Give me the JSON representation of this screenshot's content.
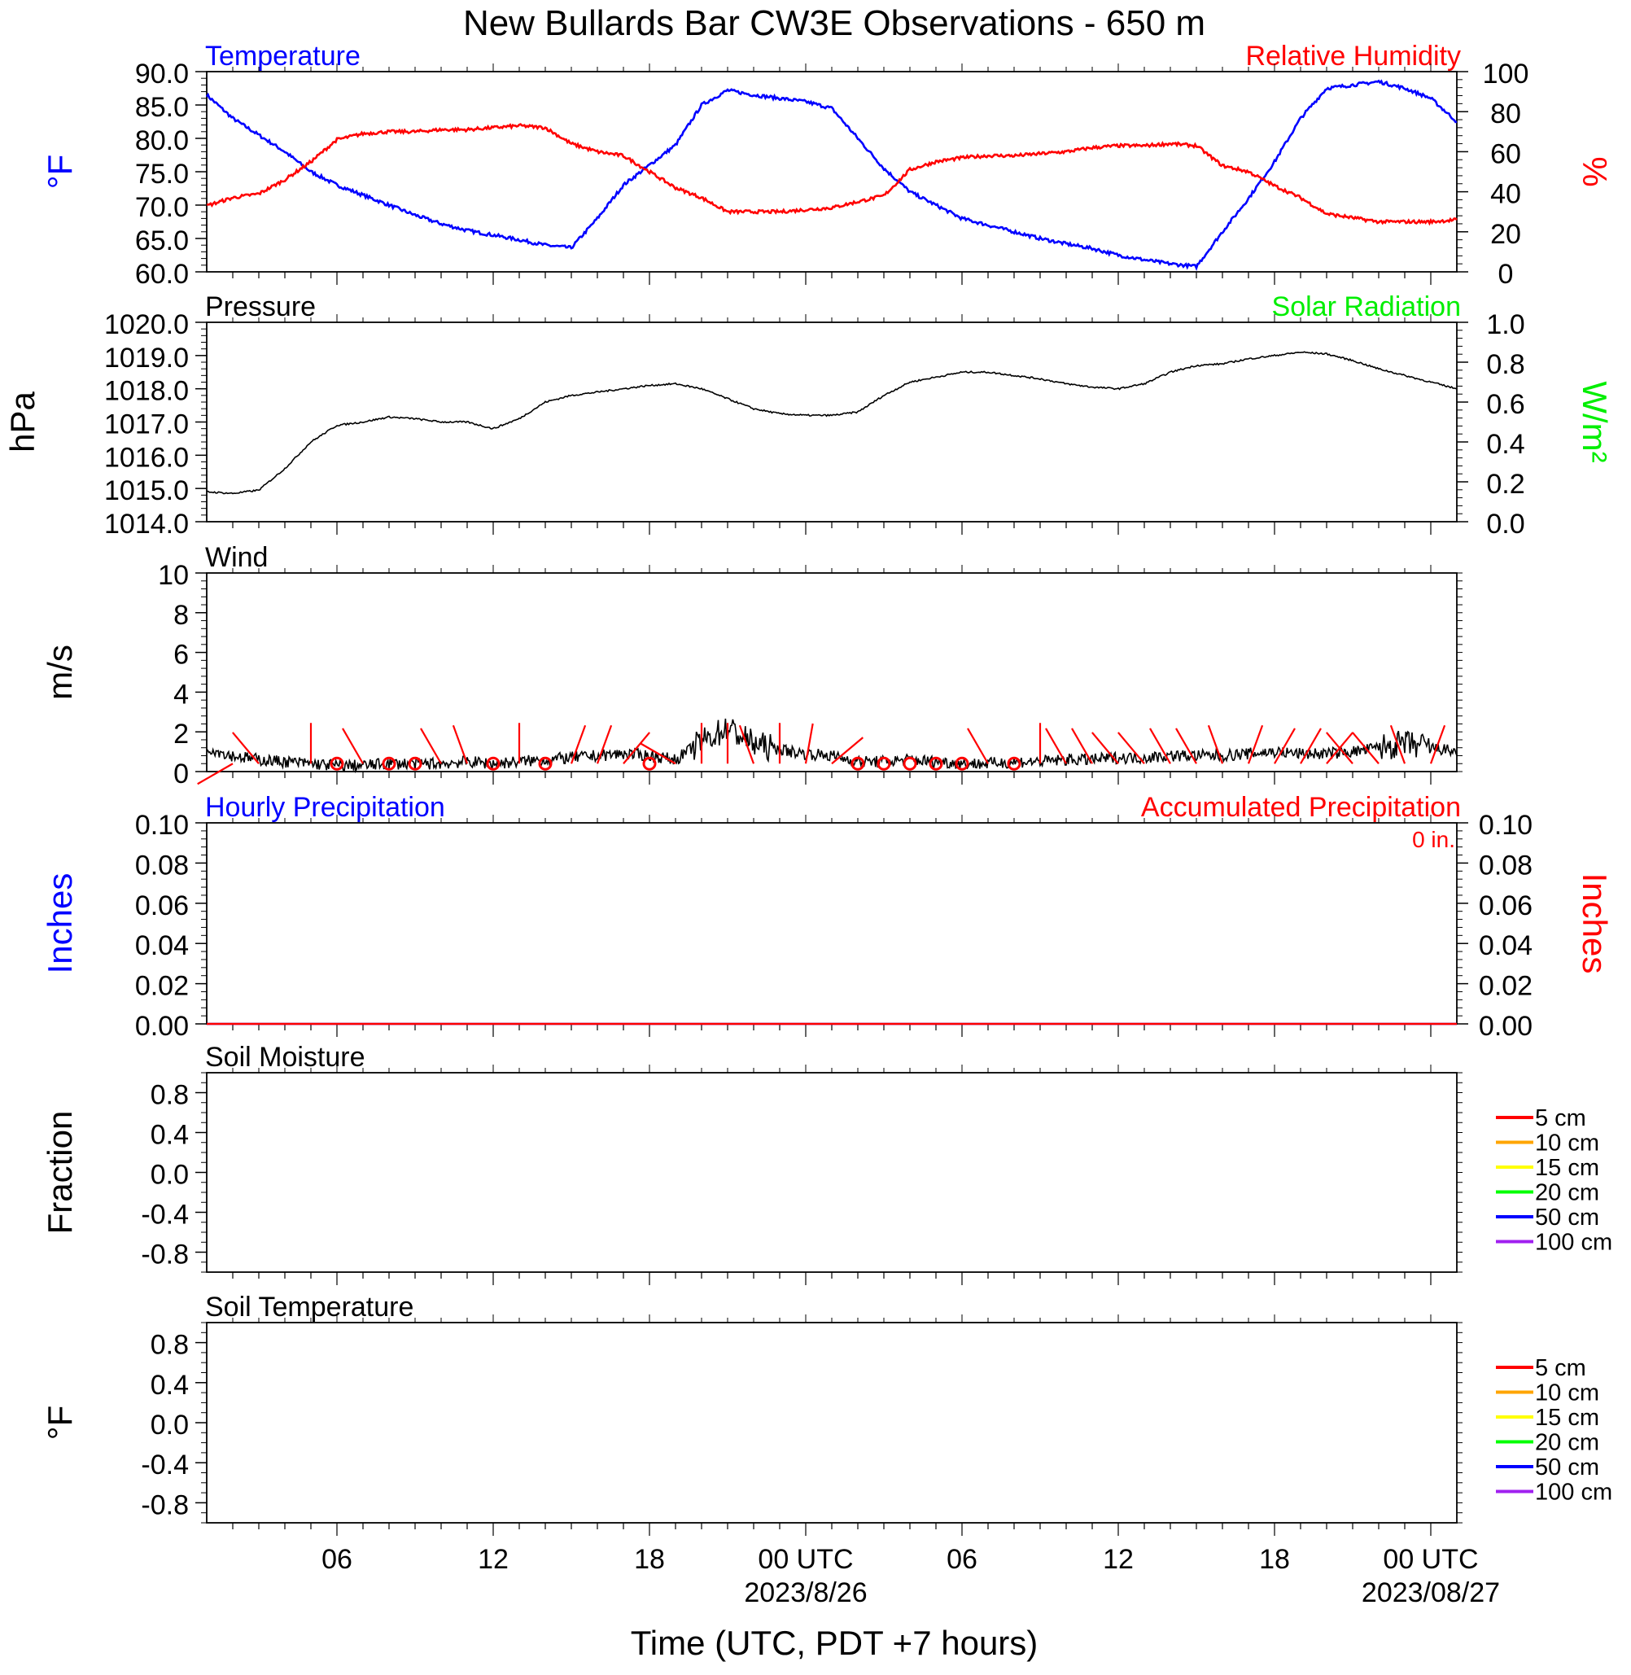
{
  "title": "New Bullards Bar CW3E Observations - 650 m",
  "xlabel": "Time (UTC, PDT +7 hours)",
  "x_ticks": [
    {
      "h": 6,
      "label": "06",
      "date": ""
    },
    {
      "h": 12,
      "label": "12",
      "date": ""
    },
    {
      "h": 18,
      "label": "18",
      "date": ""
    },
    {
      "h": 24,
      "label": "00 UTC",
      "date": "2023/8/26"
    },
    {
      "h": 30,
      "label": "06",
      "date": ""
    },
    {
      "h": 36,
      "label": "12",
      "date": ""
    },
    {
      "h": 42,
      "label": "18",
      "date": ""
    },
    {
      "h": 48,
      "label": "00 UTC",
      "date": "2023/08/27"
    }
  ],
  "x_range_hours": [
    1,
    49
  ],
  "colors": {
    "temperature": "#0000ff",
    "humidity": "#ff0000",
    "pressure": "#000000",
    "solar": "#00ee00",
    "wind": "#000000",
    "barb": "#ff0000",
    "hourly_precip": "#0000ff",
    "accum_precip": "#ff0000"
  },
  "chart_data": [
    {
      "type": "line",
      "panel": "temperature-humidity",
      "left_title": "Temperature",
      "right_title": "Relative Humidity",
      "ylabel_left": "°F",
      "ylabel_right": "%",
      "ylim_left": [
        60,
        90
      ],
      "ylim_right": [
        0,
        100
      ],
      "yticks_left": [
        "60.0",
        "65.0",
        "70.0",
        "75.0",
        "80.0",
        "85.0",
        "90.0"
      ],
      "yticks_right": [
        "0",
        "20",
        "40",
        "60",
        "80",
        "100"
      ],
      "series": [
        {
          "key": "temperature",
          "axis": "left",
          "x": [
            1,
            2,
            3,
            4,
            5,
            6,
            7,
            8,
            9,
            10,
            11,
            12,
            13,
            14,
            15,
            16,
            17,
            18,
            19,
            20,
            21,
            22,
            23,
            24,
            25,
            26,
            27,
            28,
            29,
            30,
            31,
            32,
            33,
            34,
            35,
            36,
            37,
            38,
            39,
            40,
            41,
            42,
            43,
            44,
            45,
            46,
            47,
            48,
            49
          ],
          "values": [
            86.5,
            83,
            80.5,
            78,
            75,
            73,
            71.5,
            70,
            68.5,
            67.2,
            66.2,
            65.5,
            64.8,
            64,
            63.6,
            68,
            73,
            76,
            79,
            85,
            87.2,
            86.5,
            86,
            85.5,
            84.5,
            80,
            75.5,
            72,
            70,
            68,
            67,
            66,
            65,
            64.2,
            63.5,
            62.5,
            61.8,
            61.2,
            60.8,
            66,
            71,
            76.5,
            83,
            87.5,
            88,
            88.5,
            87.5,
            86,
            82.5
          ]
        },
        {
          "key": "humidity",
          "axis": "right",
          "x": [
            1,
            2,
            3,
            4,
            5,
            6,
            7,
            8,
            9,
            10,
            11,
            12,
            13,
            14,
            15,
            16,
            17,
            18,
            19,
            20,
            21,
            22,
            23,
            24,
            25,
            26,
            27,
            28,
            29,
            30,
            31,
            32,
            33,
            34,
            35,
            36,
            37,
            38,
            39,
            40,
            41,
            42,
            43,
            44,
            45,
            46,
            47,
            48,
            49
          ],
          "values": [
            33,
            37,
            39,
            46,
            55,
            66,
            69,
            70,
            70,
            71,
            71,
            72,
            73,
            72,
            64,
            60,
            58,
            50,
            42,
            37,
            30,
            30,
            30,
            31,
            32,
            35,
            38,
            51,
            55,
            57,
            58,
            58,
            59,
            60,
            62,
            63,
            63,
            64,
            63,
            53,
            50,
            43,
            37,
            29,
            27,
            25,
            25,
            25,
            26
          ]
        }
      ]
    },
    {
      "type": "line",
      "panel": "pressure-solar",
      "left_title": "Pressure",
      "right_title": "Solar Radiation",
      "ylabel_left": "hPa",
      "ylabel_right": "W/m²",
      "ylim_left": [
        1014,
        1020
      ],
      "ylim_right": [
        0,
        1
      ],
      "yticks_left": [
        "1014.0",
        "1015.0",
        "1016.0",
        "1017.0",
        "1018.0",
        "1019.0",
        "1020.0"
      ],
      "yticks_right": [
        "0.0",
        "0.2",
        "0.4",
        "0.6",
        "0.8",
        "1.0"
      ],
      "series": [
        {
          "key": "pressure",
          "axis": "left",
          "x": [
            1,
            2,
            3,
            4,
            5,
            6,
            7,
            8,
            9,
            10,
            11,
            12,
            13,
            14,
            15,
            16,
            17,
            18,
            19,
            20,
            21,
            22,
            23,
            24,
            25,
            26,
            27,
            28,
            29,
            30,
            31,
            32,
            33,
            34,
            35,
            36,
            37,
            38,
            39,
            40,
            41,
            42,
            43,
            44,
            45,
            46,
            47,
            48,
            49
          ],
          "values": [
            1014.9,
            1014.85,
            1014.95,
            1015.6,
            1016.4,
            1016.9,
            1017.0,
            1017.15,
            1017.1,
            1017.0,
            1017.0,
            1016.8,
            1017.1,
            1017.6,
            1017.8,
            1017.9,
            1018.0,
            1018.1,
            1018.15,
            1018.0,
            1017.7,
            1017.4,
            1017.25,
            1017.2,
            1017.2,
            1017.3,
            1017.8,
            1018.2,
            1018.35,
            1018.5,
            1018.5,
            1018.4,
            1018.3,
            1018.15,
            1018.05,
            1018.0,
            1018.15,
            1018.5,
            1018.7,
            1018.75,
            1018.9,
            1019.0,
            1019.1,
            1019.05,
            1018.85,
            1018.6,
            1018.4,
            1018.2,
            1018.0
          ]
        }
      ]
    },
    {
      "type": "line",
      "panel": "wind",
      "left_title": "Wind",
      "ylabel_left": "m/s",
      "ylim_left": [
        0,
        10
      ],
      "yticks_left": [
        "0",
        "2",
        "4",
        "6",
        "8",
        "10"
      ],
      "series": [
        {
          "key": "wind_speed",
          "axis": "left",
          "x": [
            1,
            2,
            3,
            4,
            5,
            6,
            7,
            8,
            9,
            10,
            11,
            12,
            13,
            14,
            15,
            16,
            17,
            18,
            19,
            20,
            21,
            22,
            23,
            24,
            25,
            26,
            27,
            28,
            29,
            30,
            31,
            32,
            33,
            34,
            35,
            36,
            37,
            38,
            39,
            40,
            41,
            42,
            43,
            44,
            45,
            46,
            47,
            48,
            49
          ],
          "values": [
            1.2,
            0.8,
            0.6,
            0.5,
            0.4,
            0.3,
            0.3,
            0.4,
            0.4,
            0.4,
            0.5,
            0.4,
            0.5,
            0.6,
            0.7,
            0.8,
            0.9,
            0.8,
            0.6,
            1.5,
            2.2,
            1.4,
            1.1,
            0.9,
            0.8,
            0.5,
            0.5,
            0.6,
            0.5,
            0.4,
            0.4,
            0.5,
            0.5,
            0.6,
            0.6,
            0.7,
            0.7,
            0.8,
            0.8,
            0.8,
            0.9,
            1.0,
            0.9,
            0.9,
            1.0,
            1.2,
            1.4,
            1.2,
            1.0
          ]
        },
        {
          "key": "wind_barbs",
          "axis": "left",
          "x": [
            2,
            3,
            5,
            6,
            7,
            8,
            9,
            10,
            11,
            12,
            13,
            14,
            15,
            16,
            17,
            18,
            19,
            20,
            21,
            22,
            23,
            24,
            25,
            26,
            27,
            28,
            29,
            30,
            31,
            32,
            33,
            34,
            35,
            36,
            37,
            38,
            39,
            40,
            41,
            42,
            43,
            44,
            45,
            46,
            47,
            48
          ],
          "direction_deg": [
            240,
            320,
            0,
            0,
            330,
            0,
            0,
            330,
            340,
            0,
            0,
            0,
            20,
            20,
            40,
            0,
            300,
            0,
            0,
            340,
            0,
            10,
            50,
            0,
            0,
            0,
            0,
            0,
            330,
            0,
            0,
            330,
            330,
            320,
            320,
            330,
            330,
            340,
            20,
            30,
            30,
            40,
            320,
            320,
            340,
            20
          ],
          "calm": [
            false,
            false,
            false,
            true,
            false,
            true,
            true,
            false,
            false,
            true,
            false,
            true,
            false,
            false,
            false,
            true,
            false,
            false,
            false,
            false,
            false,
            false,
            false,
            true,
            true,
            true,
            true,
            true,
            false,
            true,
            false,
            false,
            false,
            false,
            false,
            false,
            false,
            false,
            false,
            false,
            false,
            false,
            false,
            false,
            false,
            false
          ]
        }
      ]
    },
    {
      "type": "line",
      "panel": "precipitation",
      "left_title": "Hourly Precipitation",
      "right_title": "Accumulated Precipitation",
      "annotation": "0 in.",
      "ylabel_left": "Inches",
      "ylabel_right": "Inches",
      "ylim_left": [
        0,
        0.1
      ],
      "ylim_right": [
        0,
        0.1
      ],
      "yticks_left": [
        "0.00",
        "0.02",
        "0.04",
        "0.06",
        "0.08",
        "0.10"
      ],
      "yticks_right": [
        "0.00",
        "0.02",
        "0.04",
        "0.06",
        "0.08",
        "0.10"
      ],
      "series": [
        {
          "key": "hourly_precip",
          "axis": "left",
          "x": [
            1,
            49
          ],
          "values": [
            0,
            0
          ]
        },
        {
          "key": "accum_precip",
          "axis": "right",
          "x": [
            1,
            49
          ],
          "values": [
            0,
            0
          ]
        }
      ]
    },
    {
      "type": "line",
      "panel": "soil-moisture",
      "left_title": "Soil Moisture",
      "ylabel_left": "Fraction",
      "ylim_left": [
        -1,
        1
      ],
      "yticks_left": [
        "-0.8",
        "-0.4",
        "0.0",
        "0.4",
        "0.8"
      ],
      "legend": [
        {
          "name": "5 cm",
          "color": "#ff0000"
        },
        {
          "name": "10 cm",
          "color": "#ffa500"
        },
        {
          "name": "15 cm",
          "color": "#ffff00"
        },
        {
          "name": "20 cm",
          "color": "#00ff00"
        },
        {
          "name": "50 cm",
          "color": "#0000ff"
        },
        {
          "name": "100 cm",
          "color": "#a020f0"
        }
      ]
    },
    {
      "type": "line",
      "panel": "soil-temperature",
      "left_title": "Soil Temperature",
      "ylabel_left": "°F",
      "ylim_left": [
        -1,
        1
      ],
      "yticks_left": [
        "-0.8",
        "-0.4",
        "0.0",
        "0.4",
        "0.8"
      ],
      "legend": [
        {
          "name": "5 cm",
          "color": "#ff0000"
        },
        {
          "name": "10 cm",
          "color": "#ffa500"
        },
        {
          "name": "15 cm",
          "color": "#ffff00"
        },
        {
          "name": "20 cm",
          "color": "#00ff00"
        },
        {
          "name": "50 cm",
          "color": "#0000ff"
        },
        {
          "name": "100 cm",
          "color": "#a020f0"
        }
      ]
    }
  ]
}
